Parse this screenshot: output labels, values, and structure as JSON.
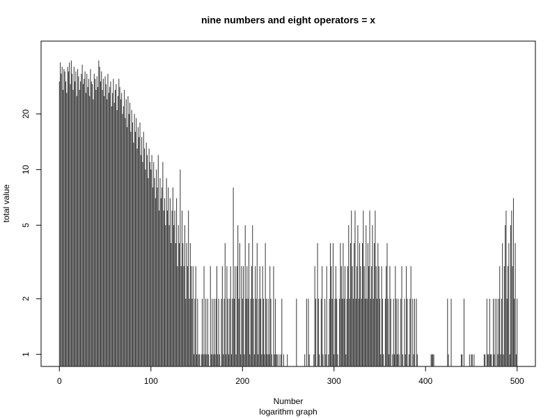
{
  "chart_data": {
    "type": "spike",
    "title": "nine numbers and eight operators = x",
    "xlabel": "Number",
    "subtitle": "logarithm graph",
    "ylabel": "total value",
    "color": "#333333",
    "ylog": true,
    "xlim": [
      -20,
      520
    ],
    "ylim": [
      0.86,
      49.6
    ],
    "xticks": [
      0,
      100,
      200,
      300,
      400,
      500
    ],
    "yticks": [
      1,
      2,
      5,
      10,
      20
    ],
    "x": [
      0,
      1,
      2,
      3,
      4,
      5,
      6,
      7,
      8,
      9,
      10,
      11,
      12,
      13,
      14,
      15,
      16,
      17,
      18,
      19,
      20,
      21,
      22,
      23,
      24,
      25,
      26,
      27,
      28,
      29,
      30,
      31,
      32,
      33,
      34,
      35,
      36,
      37,
      38,
      39,
      40,
      41,
      42,
      43,
      44,
      45,
      46,
      47,
      48,
      49,
      50,
      51,
      52,
      53,
      54,
      55,
      56,
      57,
      58,
      59,
      60,
      61,
      62,
      63,
      64,
      65,
      66,
      67,
      68,
      69,
      70,
      71,
      72,
      73,
      74,
      75,
      76,
      77,
      78,
      79,
      80,
      81,
      82,
      83,
      84,
      85,
      86,
      87,
      88,
      89,
      90,
      91,
      92,
      93,
      94,
      95,
      96,
      97,
      98,
      99,
      100,
      101,
      102,
      103,
      104,
      105,
      106,
      107,
      108,
      109,
      110,
      111,
      112,
      113,
      114,
      115,
      116,
      117,
      118,
      119,
      120,
      121,
      122,
      123,
      124,
      125,
      126,
      127,
      128,
      129,
      130,
      131,
      132,
      133,
      134,
      135,
      136,
      137,
      138,
      139,
      140,
      141,
      142,
      143,
      144,
      145,
      146,
      147,
      148,
      149,
      150,
      151,
      152,
      153,
      154,
      155,
      156,
      157,
      158,
      159,
      160,
      161,
      162,
      163,
      164,
      165,
      166,
      167,
      168,
      169,
      170,
      171,
      172,
      173,
      174,
      175,
      176,
      177,
      178,
      179,
      180,
      181,
      182,
      183,
      184,
      185,
      186,
      187,
      188,
      189,
      190,
      191,
      192,
      193,
      194,
      195,
      196,
      197,
      198,
      199,
      200,
      201,
      202,
      203,
      204,
      205,
      206,
      207,
      208,
      209,
      210,
      211,
      212,
      213,
      214,
      215,
      216,
      217,
      218,
      219,
      220,
      221,
      222,
      223,
      224,
      225,
      226,
      227,
      228,
      229,
      230,
      231,
      232,
      233,
      234,
      235,
      236,
      237,
      238,
      239,
      240,
      241,
      242,
      243,
      244,
      245,
      246,
      247,
      248,
      249,
      250,
      251,
      252,
      253,
      254,
      255,
      256,
      257,
      258,
      259,
      260,
      261,
      262,
      263,
      264,
      265,
      266,
      267,
      268,
      269,
      270,
      271,
      272,
      273,
      274,
      275,
      276,
      277,
      278,
      279,
      280,
      281,
      282,
      283,
      284,
      285,
      286,
      287,
      288,
      289,
      290,
      291,
      292,
      293,
      294,
      295,
      296,
      297,
      298,
      299,
      300,
      301,
      302,
      303,
      304,
      305,
      306,
      307,
      308,
      309,
      310,
      311,
      312,
      313,
      314,
      315,
      316,
      317,
      318,
      319,
      320,
      321,
      322,
      323,
      324,
      325,
      326,
      327,
      328,
      329,
      330,
      331,
      332,
      333,
      334,
      335,
      336,
      337,
      338,
      339,
      340,
      341,
      342,
      343,
      344,
      345,
      346,
      347,
      348,
      349,
      350,
      351,
      352,
      353,
      354,
      355,
      356,
      357,
      358,
      359,
      360,
      361,
      362,
      363,
      364,
      365,
      366,
      367,
      368,
      369,
      370,
      371,
      372,
      373,
      374,
      375,
      376,
      377,
      378,
      379,
      380,
      381,
      382,
      383,
      384,
      385,
      386,
      387,
      388,
      389,
      390,
      391,
      392,
      393,
      394,
      395,
      396,
      397,
      398,
      399,
      400,
      401,
      402,
      403,
      404,
      405,
      406,
      407,
      408,
      409,
      410,
      411,
      412,
      413,
      414,
      415,
      416,
      417,
      418,
      419,
      420,
      421,
      422,
      423,
      424,
      425,
      426,
      427,
      428,
      429,
      430,
      431,
      432,
      433,
      434,
      435,
      436,
      437,
      438,
      439,
      440,
      441,
      442,
      443,
      444,
      445,
      446,
      447,
      448,
      449,
      450,
      451,
      452,
      453,
      454,
      455,
      456,
      457,
      458,
      459,
      460,
      461,
      462,
      463,
      464,
      465,
      466,
      467,
      468,
      469,
      470,
      471,
      472,
      473,
      474,
      475,
      476,
      477,
      478,
      479,
      480,
      481,
      482,
      483,
      484,
      485,
      486,
      487,
      488,
      489,
      490,
      491,
      492,
      493,
      494,
      495,
      496,
      497,
      498,
      499,
      500
    ],
    "values": [
      30,
      38,
      33,
      36,
      27,
      35,
      34,
      30,
      26,
      36,
      34,
      38,
      29,
      39,
      33,
      27,
      36,
      30,
      34,
      25,
      35,
      32,
      27,
      30,
      33,
      37,
      29,
      31,
      34,
      26,
      33,
      28,
      31,
      25,
      35,
      30,
      29,
      24,
      33,
      31,
      27,
      32,
      28,
      39,
      36,
      30,
      34,
      27,
      31,
      25,
      32,
      29,
      24,
      33,
      26,
      28,
      30,
      22,
      26,
      31,
      23,
      27,
      29,
      21,
      25,
      31,
      28,
      24,
      26,
      20,
      22,
      27,
      19,
      24,
      17,
      25,
      20,
      23,
      16,
      21,
      18,
      14,
      20,
      16,
      19,
      13,
      17,
      15,
      18,
      12,
      15,
      11,
      16,
      13,
      10,
      14,
      12,
      9,
      13,
      11,
      10,
      12,
      8,
      11,
      9,
      7,
      10,
      8,
      12,
      6,
      9,
      7,
      8,
      11,
      6,
      7,
      5,
      9,
      6,
      8,
      5,
      7,
      4,
      6,
      8,
      5,
      6,
      4,
      7,
      3,
      5,
      4,
      10,
      3,
      6,
      4,
      3,
      5,
      2,
      4,
      3,
      6,
      2,
      4,
      3,
      2,
      3,
      1,
      2,
      3,
      1,
      2,
      1,
      1,
      null,
      1,
      2,
      1,
      3,
      1,
      2,
      1,
      2,
      1,
      null,
      3,
      1,
      2,
      1,
      2,
      1,
      2,
      3,
      1,
      2,
      1,
      null,
      2,
      3,
      1,
      2,
      4,
      1,
      3,
      2,
      1,
      2,
      3,
      1,
      2,
      8,
      2,
      3,
      1,
      3,
      5,
      2,
      4,
      1,
      3,
      2,
      3,
      1,
      5,
      2,
      3,
      2,
      4,
      1,
      2,
      3,
      5,
      2,
      1,
      3,
      2,
      4,
      1,
      2,
      3,
      2,
      1,
      3,
      2,
      1,
      4,
      2,
      1,
      2,
      1,
      3,
      2,
      1,
      null,
      3,
      1,
      2,
      1,
      1,
      null,
      1,
      null,
      1,
      2,
      null,
      1,
      null,
      null,
      null,
      1,
      null,
      null,
      null,
      null,
      null,
      null,
      null,
      null,
      null,
      2,
      null,
      null,
      null,
      null,
      null,
      null,
      null,
      null,
      1,
      null,
      2,
      null,
      2,
      1,
      null,
      null,
      null,
      null,
      1,
      3,
      2,
      null,
      4,
      2,
      1,
      null,
      2,
      3,
      1,
      null,
      2,
      1,
      3,
      null,
      1,
      2,
      4,
      3,
      2,
      4,
      1,
      2,
      3,
      2,
      1,
      null,
      2,
      4,
      3,
      2,
      4,
      2,
      3,
      1,
      2,
      3,
      5,
      2,
      4,
      6,
      3,
      2,
      4,
      6,
      2,
      3,
      5,
      2,
      4,
      3,
      2,
      4,
      6,
      3,
      2,
      5,
      2,
      4,
      3,
      6,
      2,
      3,
      5,
      2,
      4,
      6,
      3,
      2,
      4,
      3,
      2,
      1,
      3,
      2,
      1,
      null,
      2,
      3,
      4,
      2,
      1,
      3,
      2,
      null,
      1,
      2,
      1,
      3,
      2,
      1,
      2,
      1,
      null,
      2,
      3,
      1,
      null,
      2,
      1,
      3,
      2,
      null,
      1,
      2,
      3,
      null,
      2,
      1,
      2,
      null,
      2,
      1,
      null,
      null,
      null,
      null,
      null,
      null,
      null,
      null,
      null,
      null,
      null,
      null,
      null,
      null,
      1,
      1,
      1,
      1,
      null,
      null,
      null,
      null,
      null,
      null,
      null,
      null,
      null,
      null,
      null,
      null,
      null,
      null,
      2,
      1,
      null,
      null,
      2,
      null,
      null,
      null,
      null,
      null,
      null,
      null,
      null,
      null,
      null,
      1,
      1,
      null,
      2,
      null,
      null,
      null,
      null,
      null,
      1,
      null,
      1,
      1,
      null,
      1,
      null,
      null,
      null,
      null,
      null,
      null,
      null,
      null,
      null,
      null,
      1,
      1,
      null,
      2,
      1,
      1,
      2,
      1,
      1,
      null,
      2,
      1,
      2,
      null,
      2,
      1,
      2,
      3,
      1,
      2,
      4,
      1,
      3,
      5,
      6,
      2,
      3,
      4,
      1,
      5,
      6,
      3,
      7,
      2,
      4,
      1,
      2
    ]
  }
}
